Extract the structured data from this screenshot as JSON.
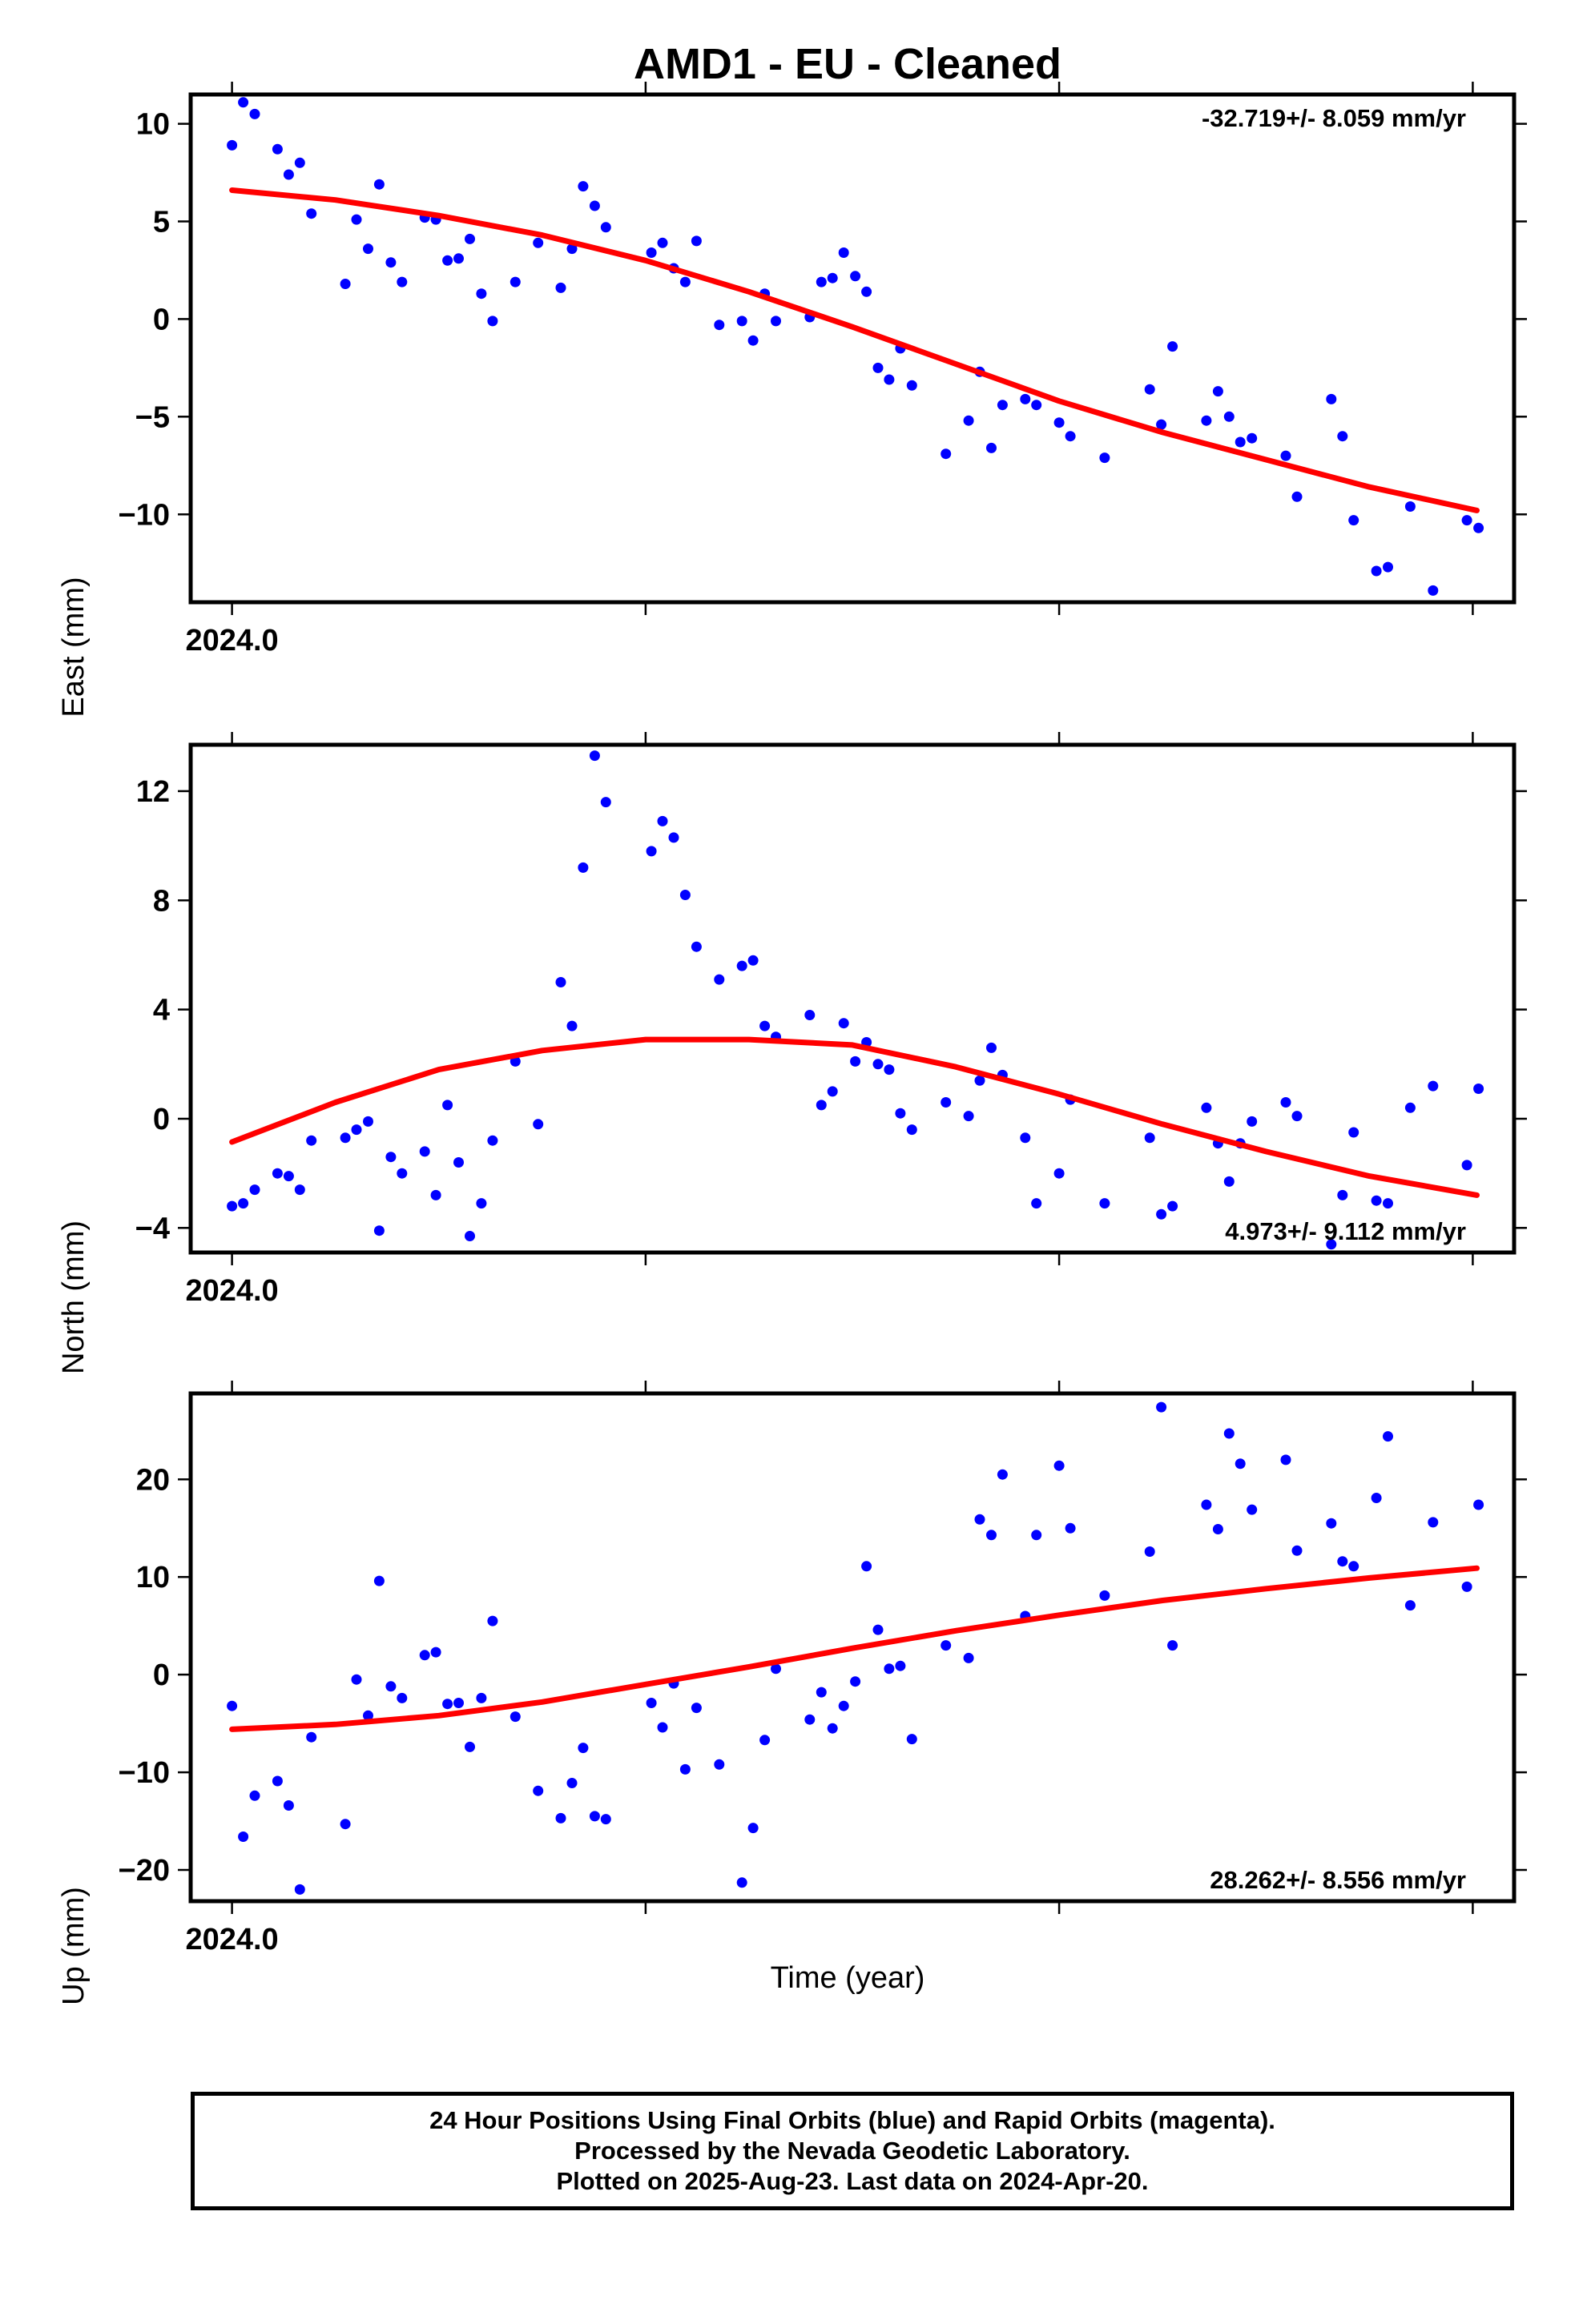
{
  "title": "AMD1  - EU - Cleaned",
  "xlabel": "Time (year)",
  "footer": {
    "line1": "24 Hour Positions Using Final Orbits (blue) and Rapid Orbits (magenta).",
    "line2": "Processed by the Nevada Geodetic Laboratory.",
    "line3": "Plotted on 2025-Aug-23. Last data on 2024-Apr-20."
  },
  "colors": {
    "points": "#0000ff",
    "fit": "#ff0000",
    "frame": "#000000"
  },
  "chart_data": [
    {
      "type": "scatter",
      "ylabel": "East (mm)",
      "rate_text": "-32.719+/- 8.059 mm/yr",
      "rate_position": "top-right",
      "xlim": [
        2023.99,
        2024.31
      ],
      "ylim": [
        -14.5,
        11.5
      ],
      "xticks": [
        2024.0,
        2024.1,
        2024.2,
        2024.3
      ],
      "xtick_labels": [
        "2024.0",
        "",
        "",
        ""
      ],
      "yticks": [
        10,
        5,
        0,
        -5,
        -10
      ],
      "ytick_labels": [
        "10",
        "5",
        "0",
        "−5",
        "−10"
      ],
      "points": [
        [
          2024.0,
          8.9
        ],
        [
          2024.0027,
          11.1
        ],
        [
          2024.0055,
          10.5
        ],
        [
          2024.011,
          8.7
        ],
        [
          2024.0137,
          7.4
        ],
        [
          2024.0164,
          8.0
        ],
        [
          2024.0192,
          5.4
        ],
        [
          2024.0274,
          1.8
        ],
        [
          2024.0301,
          5.1
        ],
        [
          2024.0329,
          3.6
        ],
        [
          2024.0356,
          6.9
        ],
        [
          2024.0384,
          2.9
        ],
        [
          2024.0411,
          1.9
        ],
        [
          2024.0466,
          5.2
        ],
        [
          2024.0493,
          5.1
        ],
        [
          2024.0521,
          3.0
        ],
        [
          2024.0548,
          3.1
        ],
        [
          2024.0575,
          4.1
        ],
        [
          2024.0603,
          1.3
        ],
        [
          2024.063,
          -0.1
        ],
        [
          2024.0685,
          1.9
        ],
        [
          2024.074,
          3.9
        ],
        [
          2024.0795,
          1.6
        ],
        [
          2024.0822,
          3.6
        ],
        [
          2024.0849,
          6.8
        ],
        [
          2024.0877,
          5.8
        ],
        [
          2024.0904,
          4.7
        ],
        [
          2024.1014,
          3.4
        ],
        [
          2024.1041,
          3.9
        ],
        [
          2024.1068,
          2.6
        ],
        [
          2024.1096,
          1.9
        ],
        [
          2024.1123,
          4.0
        ],
        [
          2024.1178,
          -0.3
        ],
        [
          2024.1233,
          -0.1
        ],
        [
          2024.126,
          -1.1
        ],
        [
          2024.1288,
          1.3
        ],
        [
          2024.1315,
          -0.1
        ],
        [
          2024.1397,
          0.1
        ],
        [
          2024.1425,
          1.9
        ],
        [
          2024.1452,
          2.1
        ],
        [
          2024.1479,
          3.4
        ],
        [
          2024.1507,
          2.2
        ],
        [
          2024.1534,
          1.4
        ],
        [
          2024.1562,
          -2.5
        ],
        [
          2024.1589,
          -3.1
        ],
        [
          2024.1616,
          -1.5
        ],
        [
          2024.1644,
          -3.4
        ],
        [
          2024.1726,
          -6.9
        ],
        [
          2024.1781,
          -5.2
        ],
        [
          2024.1808,
          -2.7
        ],
        [
          2024.1836,
          -6.6
        ],
        [
          2024.1863,
          -4.4
        ],
        [
          2024.1918,
          -4.1
        ],
        [
          2024.1945,
          -4.4
        ],
        [
          2024.2,
          -5.3
        ],
        [
          2024.2027,
          -6.0
        ],
        [
          2024.211,
          -7.1
        ],
        [
          2024.2219,
          -3.6
        ],
        [
          2024.2247,
          -5.4
        ],
        [
          2024.2274,
          -1.4
        ],
        [
          2024.2356,
          -5.2
        ],
        [
          2024.2384,
          -3.7
        ],
        [
          2024.2411,
          -5.0
        ],
        [
          2024.2438,
          -6.3
        ],
        [
          2024.2466,
          -6.1
        ],
        [
          2024.2548,
          -7.0
        ],
        [
          2024.2575,
          -9.1
        ],
        [
          2024.2658,
          -4.1
        ],
        [
          2024.2685,
          -6.0
        ],
        [
          2024.2712,
          -10.3
        ],
        [
          2024.2767,
          -12.9
        ],
        [
          2024.2795,
          -12.7
        ],
        [
          2024.2849,
          -9.6
        ],
        [
          2024.2904,
          -13.9
        ],
        [
          2024.2986,
          -10.3
        ],
        [
          2024.3014,
          -10.7
        ]
      ],
      "fit": [
        [
          2024.0,
          6.6
        ],
        [
          2024.025,
          6.1
        ],
        [
          2024.05,
          5.3
        ],
        [
          2024.075,
          4.3
        ],
        [
          2024.1,
          3.0
        ],
        [
          2024.125,
          1.4
        ],
        [
          2024.15,
          -0.4
        ],
        [
          2024.175,
          -2.3
        ],
        [
          2024.2,
          -4.2
        ],
        [
          2024.225,
          -5.8
        ],
        [
          2024.25,
          -7.2
        ],
        [
          2024.275,
          -8.6
        ],
        [
          2024.301,
          -9.8
        ]
      ]
    },
    {
      "type": "scatter",
      "ylabel": "North (mm)",
      "rate_text": "4.973+/- 9.112 mm/yr",
      "rate_position": "bottom-right",
      "xlim": [
        2023.99,
        2024.31
      ],
      "ylim": [
        -4.9,
        13.7
      ],
      "xticks": [
        2024.0,
        2024.1,
        2024.2,
        2024.3
      ],
      "xtick_labels": [
        "2024.0",
        "",
        "",
        ""
      ],
      "yticks": [
        12,
        8,
        4,
        0,
        -4
      ],
      "ytick_labels": [
        "12",
        "8",
        "4",
        "0",
        "−4"
      ],
      "points": [
        [
          2024.0,
          -3.2
        ],
        [
          2024.0027,
          -3.1
        ],
        [
          2024.0055,
          -2.6
        ],
        [
          2024.011,
          -2.0
        ],
        [
          2024.0137,
          -2.1
        ],
        [
          2024.0164,
          -2.6
        ],
        [
          2024.0192,
          -0.8
        ],
        [
          2024.0274,
          -0.7
        ],
        [
          2024.0301,
          -0.4
        ],
        [
          2024.0329,
          -0.1
        ],
        [
          2024.0356,
          -4.1
        ],
        [
          2024.0384,
          -1.4
        ],
        [
          2024.0411,
          -2.0
        ],
        [
          2024.0466,
          -1.2
        ],
        [
          2024.0493,
          -2.8
        ],
        [
          2024.0521,
          0.5
        ],
        [
          2024.0548,
          -1.6
        ],
        [
          2024.0575,
          -4.3
        ],
        [
          2024.0603,
          -3.1
        ],
        [
          2024.063,
          -0.8
        ],
        [
          2024.0685,
          2.1
        ],
        [
          2024.074,
          -0.2
        ],
        [
          2024.0795,
          5.0
        ],
        [
          2024.0822,
          3.4
        ],
        [
          2024.0849,
          9.2
        ],
        [
          2024.0877,
          13.3
        ],
        [
          2024.0904,
          11.6
        ],
        [
          2024.1014,
          9.8
        ],
        [
          2024.1041,
          10.9
        ],
        [
          2024.1068,
          10.3
        ],
        [
          2024.1096,
          8.2
        ],
        [
          2024.1123,
          6.3
        ],
        [
          2024.1178,
          5.1
        ],
        [
          2024.1233,
          5.6
        ],
        [
          2024.126,
          5.8
        ],
        [
          2024.1288,
          3.4
        ],
        [
          2024.1315,
          3.0
        ],
        [
          2024.1397,
          3.8
        ],
        [
          2024.1425,
          0.5
        ],
        [
          2024.1452,
          1.0
        ],
        [
          2024.1479,
          3.5
        ],
        [
          2024.1507,
          2.1
        ],
        [
          2024.1534,
          2.8
        ],
        [
          2024.1562,
          2.0
        ],
        [
          2024.1589,
          1.8
        ],
        [
          2024.1616,
          0.2
        ],
        [
          2024.1644,
          -0.4
        ],
        [
          2024.1726,
          0.6
        ],
        [
          2024.1781,
          0.1
        ],
        [
          2024.1808,
          1.4
        ],
        [
          2024.1836,
          2.6
        ],
        [
          2024.1863,
          1.6
        ],
        [
          2024.1918,
          -0.7
        ],
        [
          2024.1945,
          -3.1
        ],
        [
          2024.2,
          -2.0
        ],
        [
          2024.2027,
          0.7
        ],
        [
          2024.211,
          -3.1
        ],
        [
          2024.2219,
          -0.7
        ],
        [
          2024.2247,
          -3.5
        ],
        [
          2024.2274,
          -3.2
        ],
        [
          2024.2356,
          0.4
        ],
        [
          2024.2384,
          -0.9
        ],
        [
          2024.2411,
          -2.3
        ],
        [
          2024.2438,
          -0.9
        ],
        [
          2024.2466,
          -0.1
        ],
        [
          2024.2548,
          0.6
        ],
        [
          2024.2575,
          0.1
        ],
        [
          2024.2658,
          -4.6
        ],
        [
          2024.2685,
          -2.8
        ],
        [
          2024.2712,
          -0.5
        ],
        [
          2024.2767,
          -3.0
        ],
        [
          2024.2795,
          -3.1
        ],
        [
          2024.2849,
          0.4
        ],
        [
          2024.2904,
          1.2
        ],
        [
          2024.2986,
          -1.7
        ],
        [
          2024.3014,
          1.1
        ]
      ],
      "fit": [
        [
          2024.0,
          -0.85
        ],
        [
          2024.025,
          0.6
        ],
        [
          2024.05,
          1.8
        ],
        [
          2024.075,
          2.5
        ],
        [
          2024.1,
          2.9
        ],
        [
          2024.125,
          2.9
        ],
        [
          2024.15,
          2.7
        ],
        [
          2024.175,
          1.9
        ],
        [
          2024.2,
          0.9
        ],
        [
          2024.225,
          -0.2
        ],
        [
          2024.25,
          -1.2
        ],
        [
          2024.275,
          -2.1
        ],
        [
          2024.301,
          -2.8
        ]
      ]
    },
    {
      "type": "scatter",
      "ylabel": "Up (mm)",
      "rate_text": "28.262+/- 8.556 mm/yr",
      "rate_position": "bottom-right",
      "xlim": [
        2023.99,
        2024.31
      ],
      "ylim": [
        -23.2,
        28.8
      ],
      "xticks": [
        2024.0,
        2024.1,
        2024.2,
        2024.3
      ],
      "xtick_labels": [
        "2024.0",
        "",
        "",
        ""
      ],
      "yticks": [
        20,
        10,
        0,
        -10,
        -20
      ],
      "ytick_labels": [
        "20",
        "10",
        "0",
        "−10",
        "−20"
      ],
      "points": [
        [
          2024.0,
          -3.2
        ],
        [
          2024.0027,
          -16.6
        ],
        [
          2024.0055,
          -12.4
        ],
        [
          2024.011,
          -10.9
        ],
        [
          2024.0137,
          -13.4
        ],
        [
          2024.0164,
          -22.0
        ],
        [
          2024.0192,
          -6.4
        ],
        [
          2024.0274,
          -15.3
        ],
        [
          2024.0301,
          -0.5
        ],
        [
          2024.0329,
          -4.2
        ],
        [
          2024.0356,
          9.6
        ],
        [
          2024.0384,
          -1.2
        ],
        [
          2024.0411,
          -2.4
        ],
        [
          2024.0466,
          2.0
        ],
        [
          2024.0493,
          2.3
        ],
        [
          2024.0521,
          -3.0
        ],
        [
          2024.0548,
          -2.9
        ],
        [
          2024.0575,
          -7.4
        ],
        [
          2024.0603,
          -2.4
        ],
        [
          2024.063,
          5.5
        ],
        [
          2024.0685,
          -4.3
        ],
        [
          2024.074,
          -11.9
        ],
        [
          2024.0795,
          -14.7
        ],
        [
          2024.0822,
          -11.1
        ],
        [
          2024.0849,
          -7.5
        ],
        [
          2024.0877,
          -14.5
        ],
        [
          2024.0904,
          -14.8
        ],
        [
          2024.1014,
          -2.9
        ],
        [
          2024.1041,
          -5.4
        ],
        [
          2024.1068,
          -0.9
        ],
        [
          2024.1096,
          -9.7
        ],
        [
          2024.1123,
          -3.4
        ],
        [
          2024.1178,
          -9.2
        ],
        [
          2024.1233,
          -21.3
        ],
        [
          2024.126,
          -15.7
        ],
        [
          2024.1288,
          -6.7
        ],
        [
          2024.1315,
          0.6
        ],
        [
          2024.1397,
          -4.6
        ],
        [
          2024.1425,
          -1.8
        ],
        [
          2024.1452,
          -5.5
        ],
        [
          2024.1479,
          -3.2
        ],
        [
          2024.1507,
          -0.7
        ],
        [
          2024.1534,
          11.1
        ],
        [
          2024.1562,
          4.6
        ],
        [
          2024.1589,
          0.6
        ],
        [
          2024.1616,
          0.9
        ],
        [
          2024.1644,
          -6.6
        ],
        [
          2024.1726,
          3.0
        ],
        [
          2024.1781,
          1.7
        ],
        [
          2024.1808,
          15.9
        ],
        [
          2024.1836,
          14.3
        ],
        [
          2024.1863,
          20.5
        ],
        [
          2024.1918,
          6.0
        ],
        [
          2024.1945,
          14.3
        ],
        [
          2024.2,
          21.4
        ],
        [
          2024.2027,
          15.0
        ],
        [
          2024.211,
          8.1
        ],
        [
          2024.2219,
          12.6
        ],
        [
          2024.2247,
          27.4
        ],
        [
          2024.2274,
          3.0
        ],
        [
          2024.2356,
          17.4
        ],
        [
          2024.2384,
          14.9
        ],
        [
          2024.2411,
          24.7
        ],
        [
          2024.2438,
          21.6
        ],
        [
          2024.2466,
          16.9
        ],
        [
          2024.2548,
          22.0
        ],
        [
          2024.2575,
          12.7
        ],
        [
          2024.2658,
          15.5
        ],
        [
          2024.2685,
          11.6
        ],
        [
          2024.2712,
          11.1
        ],
        [
          2024.2767,
          18.1
        ],
        [
          2024.2795,
          24.4
        ],
        [
          2024.2849,
          7.1
        ],
        [
          2024.2904,
          15.6
        ],
        [
          2024.2986,
          9.0
        ],
        [
          2024.3014,
          17.4
        ]
      ],
      "fit": [
        [
          2024.0,
          -5.6
        ],
        [
          2024.025,
          -5.1
        ],
        [
          2024.05,
          -4.2
        ],
        [
          2024.075,
          -2.8
        ],
        [
          2024.1,
          -1.0
        ],
        [
          2024.125,
          0.8
        ],
        [
          2024.15,
          2.7
        ],
        [
          2024.175,
          4.5
        ],
        [
          2024.2,
          6.1
        ],
        [
          2024.225,
          7.6
        ],
        [
          2024.25,
          8.8
        ],
        [
          2024.275,
          9.9
        ],
        [
          2024.301,
          10.9
        ]
      ]
    }
  ]
}
